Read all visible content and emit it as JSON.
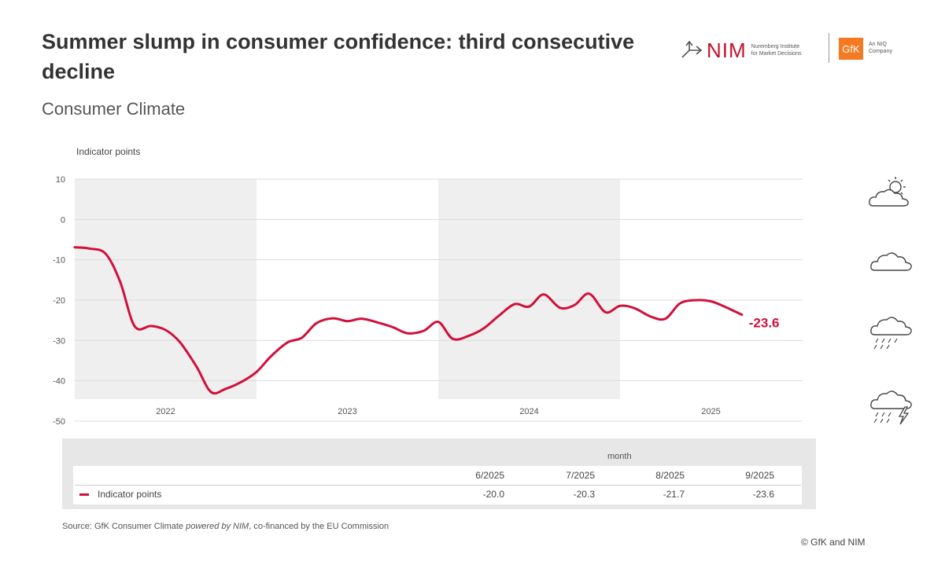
{
  "header": {
    "title": "Summer slump in consumer confidence: third consecutive decline",
    "subtitle": "Consumer Climate"
  },
  "logos": {
    "nim_text": "NIM",
    "nim_sub_line1": "Nuremberg Institute",
    "nim_sub_line2": "for Market Decisions",
    "gfk_text": "GfK",
    "gfk_sub_line1": "An NIQ",
    "gfk_sub_line2": "Company"
  },
  "chart_data": {
    "type": "line",
    "ylabel": "Indicator points",
    "ylim": [
      -50,
      10
    ],
    "yticks": [
      10,
      0,
      -10,
      -20,
      -30,
      -40,
      -50
    ],
    "x_start": 2022.0,
    "x_end": 2026.0,
    "year_labels": [
      "2022",
      "2023",
      "2024",
      "2025"
    ],
    "shaded_years": [
      "2022",
      "2024"
    ],
    "series": [
      {
        "name": "Indicator points",
        "color": "#d0103a",
        "x": [
          2022.0,
          2022.08,
          2022.17,
          2022.25,
          2022.33,
          2022.42,
          2022.5,
          2022.58,
          2022.67,
          2022.75,
          2022.83,
          2022.92,
          2023.0,
          2023.08,
          2023.17,
          2023.25,
          2023.33,
          2023.42,
          2023.5,
          2023.58,
          2023.67,
          2023.75,
          2023.83,
          2023.92,
          2024.0,
          2024.08,
          2024.17,
          2024.25,
          2024.33,
          2024.42,
          2024.5,
          2024.58,
          2024.67,
          2024.75,
          2024.83,
          2024.92,
          2025.0,
          2025.08,
          2025.17,
          2025.25,
          2025.33,
          2025.42,
          2025.5,
          2025.58,
          2025.67
        ],
        "values": [
          -6.9,
          -7.2,
          -8.5,
          -15.5,
          -26.5,
          -26.4,
          -27.4,
          -30.5,
          -36.5,
          -42.8,
          -42.0,
          -40.2,
          -37.8,
          -33.9,
          -30.5,
          -29.3,
          -25.7,
          -24.5,
          -25.2,
          -24.6,
          -25.6,
          -26.7,
          -28.2,
          -27.6,
          -25.4,
          -29.6,
          -28.8,
          -27.0,
          -24.0,
          -21.0,
          -21.6,
          -18.6,
          -21.9,
          -21.2,
          -18.4,
          -23.0,
          -21.4,
          -22.0,
          -24.1,
          -24.6,
          -20.8,
          -20.0,
          -20.3,
          -21.7,
          -23.6
        ]
      }
    ],
    "end_label": "-23.6"
  },
  "table": {
    "header_label": "month",
    "columns": [
      "6/2025",
      "7/2025",
      "8/2025",
      "9/2025"
    ],
    "row_label": "Indicator points",
    "row_values": [
      "-20.0",
      "-20.3",
      "-21.7",
      "-23.6"
    ]
  },
  "weather_icons": [
    "sun-cloud-icon",
    "cloud-icon",
    "rain-cloud-icon",
    "storm-cloud-icon"
  ],
  "footer": {
    "source_prefix": "Source: GfK Consumer Climate ",
    "source_italic": "powered by NIM",
    "source_suffix": ", co-financed by the EU Commission",
    "copyright": "© GfK and NIM"
  }
}
